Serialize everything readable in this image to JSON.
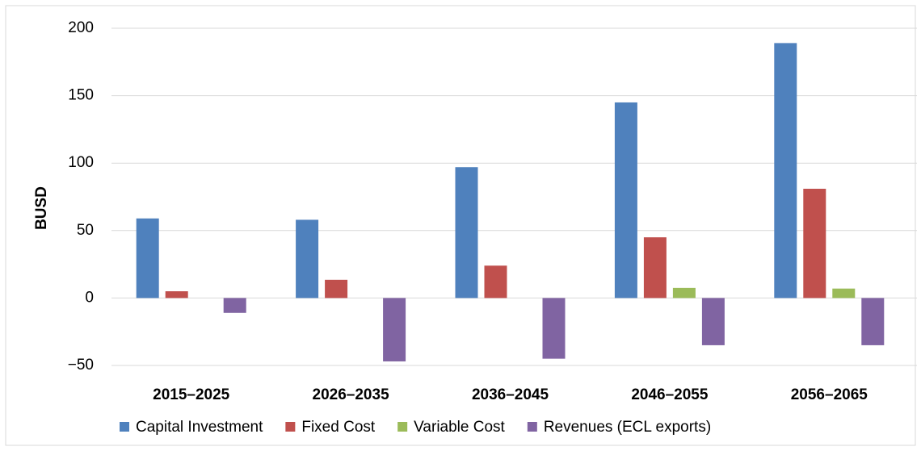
{
  "chart_data": {
    "type": "bar",
    "y_label": "BUSD",
    "categories": [
      "2015–2025",
      "2026–2035",
      "2036–2045",
      "2046–2055",
      "2056–2065"
    ],
    "series": [
      {
        "name": "Capital Investment",
        "color": "#4f81bd",
        "values": [
          59,
          58,
          97,
          145,
          189
        ]
      },
      {
        "name": "Fixed Cost",
        "color": "#c0504d",
        "values": [
          5,
          13.5,
          24,
          45,
          81
        ]
      },
      {
        "name": "Variable Cost",
        "color": "#9bbb59",
        "values": [
          0,
          0,
          0,
          7.5,
          7
        ]
      },
      {
        "name": "Revenues (ECL exports)",
        "color": "#8064a2",
        "values": [
          -11,
          -47,
          -45,
          -35,
          -35
        ]
      }
    ],
    "ylim": [
      -50,
      200
    ],
    "yticks": [
      {
        "value": -50,
        "label": "−50"
      },
      0,
      50,
      100,
      150,
      200
    ],
    "grid": true,
    "legend": "bottom"
  }
}
